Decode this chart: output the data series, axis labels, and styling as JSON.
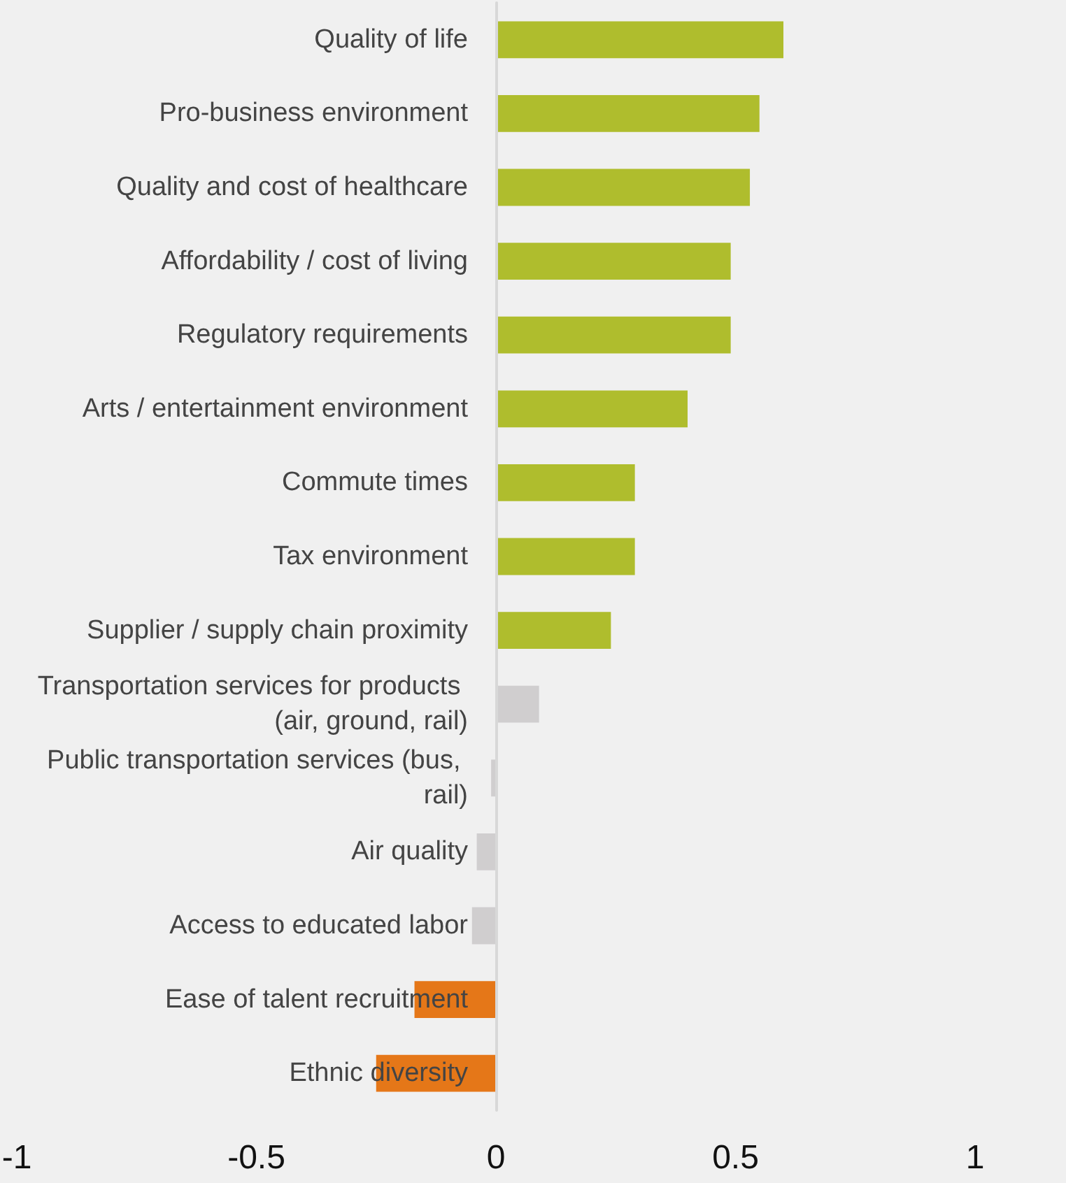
{
  "chart_data": {
    "type": "bar",
    "orientation": "horizontal",
    "categories": [
      "Quality of life",
      "Pro-business environment",
      "Quality and cost of healthcare",
      "Affordability / cost of living",
      "Regulatory requirements",
      "Arts / entertainment environment",
      "Commute times",
      "Tax environment",
      "Supplier / supply chain proximity",
      "Transportation services for products (air, ground, rail)",
      "Public transportation services (bus, rail)",
      "Air quality",
      "Access to educated labor",
      "Ease of talent recruitment",
      "Ethnic diversity"
    ],
    "values": [
      0.6,
      0.55,
      0.53,
      0.49,
      0.49,
      0.4,
      0.29,
      0.29,
      0.24,
      0.09,
      -0.01,
      -0.04,
      -0.05,
      -0.17,
      -0.25
    ],
    "colors": [
      "#afbd2d",
      "#afbd2d",
      "#afbd2d",
      "#afbd2d",
      "#afbd2d",
      "#afbd2d",
      "#afbd2d",
      "#afbd2d",
      "#afbd2d",
      "#d0cecf",
      "#d0cecf",
      "#d0cecf",
      "#d0cecf",
      "#e57718",
      "#e57718"
    ],
    "xlim": [
      -1,
      1
    ],
    "xticks": [
      -1,
      -0.5,
      0,
      0.5,
      1
    ]
  }
}
